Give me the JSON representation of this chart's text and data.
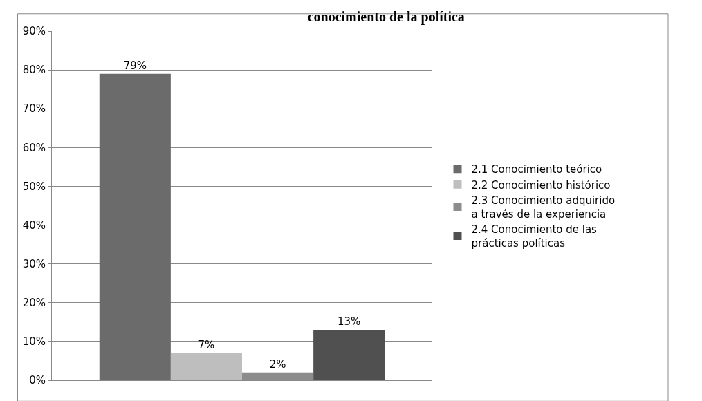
{
  "chart_data": {
    "type": "bar",
    "title": "conocimiento de la política",
    "categories": [
      null
    ],
    "series": [
      {
        "name": "2.1 Conocimiento teórico",
        "color": "#6b6b6b",
        "values": [
          79
        ],
        "value_labels": [
          "79%"
        ]
      },
      {
        "name": "2.2 Conocimiento histórico",
        "color": "#bebebe",
        "values": [
          7
        ],
        "value_labels": [
          "7%"
        ]
      },
      {
        "name": "2.3 Conocimiento adquirido a través de la experiencia",
        "color": "#8c8c8c",
        "values": [
          2
        ],
        "value_labels": [
          "2%"
        ]
      },
      {
        "name": "2.4 Conocimiento de las prácticas políticas",
        "color": "#505050",
        "values": [
          13
        ],
        "value_labels": [
          "13%"
        ]
      }
    ],
    "ylim": [
      0,
      90
    ],
    "yticks": [
      {
        "value": 0,
        "label": "0%"
      },
      {
        "value": 10,
        "label": "10%"
      },
      {
        "value": 20,
        "label": "20%"
      },
      {
        "value": 30,
        "label": "30%"
      },
      {
        "value": 40,
        "label": "40%"
      },
      {
        "value": 50,
        "label": "50%"
      },
      {
        "value": 60,
        "label": "60%"
      },
      {
        "value": 70,
        "label": "70%"
      },
      {
        "value": 80,
        "label": "80%"
      },
      {
        "value": 90,
        "label": "90%"
      }
    ],
    "grid": "y",
    "legend": "right"
  }
}
